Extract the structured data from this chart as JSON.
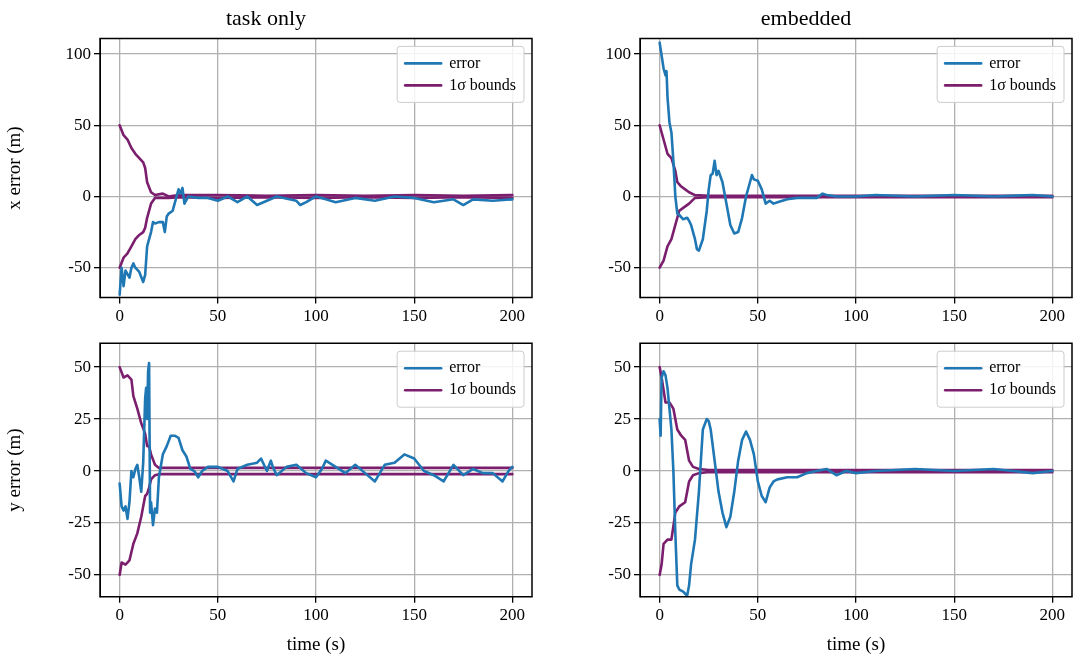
{
  "chart_data": [
    {
      "type": "line",
      "title": "task only",
      "ylabel": "x error (m)",
      "xlim": [
        -10,
        210
      ],
      "ylim": [
        -71,
        111
      ],
      "xticks": [
        0,
        50,
        100,
        150,
        200
      ],
      "yticks": [
        -50,
        0,
        50,
        100
      ],
      "grid": true,
      "legend": "top right",
      "marker": "none",
      "line_style": "solid",
      "series": [
        {
          "name": "error",
          "color": "#1f77b4",
          "x": [
            0,
            1,
            2,
            3,
            5,
            6,
            7,
            8,
            10,
            12,
            13,
            14,
            15,
            16,
            17,
            18,
            20,
            22,
            23,
            24,
            25,
            27,
            28,
            29,
            30,
            31,
            32,
            33,
            35,
            40,
            45,
            50,
            55,
            60,
            65,
            70,
            75,
            80,
            90,
            92,
            95,
            100,
            105,
            110,
            120,
            130,
            140,
            150,
            160,
            170,
            175,
            180,
            190,
            200
          ],
          "values": [
            -69,
            -50,
            -63,
            -52,
            -57,
            -50,
            -47,
            -50,
            -53,
            -60,
            -55,
            -35,
            -30,
            -25,
            -18,
            -19,
            -18,
            -18,
            -25,
            -14,
            -12,
            -10,
            -5,
            0,
            5,
            2,
            6,
            -5,
            0,
            -1,
            -1,
            -3,
            0,
            -4,
            0,
            -6,
            -3,
            0,
            -3,
            -6,
            -4,
            0,
            -2,
            -4,
            -1,
            -3,
            0,
            -1,
            -4,
            -2,
            -6,
            -2,
            -3,
            -2
          ]
        },
        {
          "name": "1σ bounds",
          "color": "#7b1e6e",
          "x": [
            0,
            2,
            4,
            6,
            8,
            10,
            12,
            13,
            14,
            16,
            18,
            22,
            25,
            30,
            50,
            75,
            100,
            125,
            150,
            175,
            200
          ],
          "values": [
            50,
            43,
            40,
            34,
            30,
            27,
            24,
            20,
            10,
            3,
            1,
            2,
            0,
            1,
            1,
            0.5,
            1,
            0.5,
            1,
            0.5,
            1
          ]
        },
        {
          "color": "#7b1e6e",
          "x": [
            0,
            2,
            4,
            6,
            8,
            10,
            12,
            13,
            14,
            16,
            18,
            20,
            25,
            30,
            50,
            75,
            100,
            125,
            150,
            175,
            200
          ],
          "values": [
            -50,
            -43,
            -40,
            -35,
            -30,
            -27,
            -25,
            -22,
            -15,
            -5,
            -1,
            -1,
            -1,
            -0.5,
            -1,
            -0.5,
            -1,
            -0.5,
            -1,
            -0.5,
            -1
          ]
        }
      ]
    },
    {
      "type": "line",
      "title": "embedded",
      "xlim": [
        -10,
        210
      ],
      "ylim": [
        -71,
        111
      ],
      "xticks": [
        0,
        50,
        100,
        150,
        200
      ],
      "yticks": [
        -50,
        0,
        50,
        100
      ],
      "grid": true,
      "legend": "top right",
      "marker": "none",
      "line_style": "solid",
      "series": [
        {
          "name": "error",
          "color": "#1f77b4",
          "x": [
            0,
            2,
            3,
            3.5,
            4,
            5,
            6,
            7,
            8,
            9,
            10,
            12,
            14,
            15,
            16,
            18,
            19,
            20,
            22,
            24,
            25,
            26,
            27,
            28,
            29,
            30,
            32,
            34,
            36,
            38,
            40,
            42,
            44,
            46,
            47,
            48,
            50,
            52,
            54,
            56,
            58,
            60,
            65,
            70,
            80,
            83,
            85,
            90,
            100,
            110,
            130,
            150,
            170,
            190,
            200
          ],
          "values": [
            108,
            90,
            85,
            88,
            70,
            52,
            45,
            25,
            0,
            -12,
            -13,
            -16,
            -15,
            -17,
            -20,
            -30,
            -37,
            -38,
            -30,
            -10,
            5,
            15,
            16,
            25,
            15,
            18,
            10,
            -5,
            -20,
            -26,
            -25,
            -15,
            0,
            10,
            15,
            12,
            11,
            5,
            -5,
            -3,
            -5,
            -4,
            -2,
            -1,
            -1,
            2,
            1,
            0,
            0,
            1,
            0,
            1,
            0,
            1,
            0
          ]
        },
        {
          "name": "1σ bounds",
          "color": "#7b1e6e",
          "x": [
            0,
            2,
            4,
            6,
            8,
            9,
            11,
            13,
            15,
            18,
            25,
            50,
            75,
            100,
            125,
            150,
            175,
            200
          ],
          "values": [
            50,
            40,
            30,
            27,
            18,
            10,
            7,
            5,
            3,
            1,
            0.5,
            0.5,
            0.5,
            0.5,
            0.5,
            0.5,
            0.5,
            0.5
          ]
        },
        {
          "color": "#7b1e6e",
          "x": [
            0,
            2,
            4,
            6,
            8,
            10,
            12,
            15,
            18,
            25,
            50,
            75,
            100,
            125,
            150,
            175,
            200
          ],
          "values": [
            -50,
            -45,
            -35,
            -30,
            -20,
            -10,
            -8,
            -5,
            -1,
            -0.5,
            -0.5,
            -0.5,
            -0.5,
            -0.5,
            -0.5,
            -0.5,
            -0.5
          ]
        }
      ]
    },
    {
      "type": "line",
      "xlabel": "time (s)",
      "ylabel": "y error (m)",
      "xlim": [
        -10,
        210
      ],
      "ylim": [
        -60.5,
        61.5
      ],
      "xticks": [
        0,
        50,
        100,
        150,
        200
      ],
      "yticks": [
        -50,
        -25,
        0,
        25,
        50
      ],
      "grid": true,
      "legend": "top right",
      "marker": "none",
      "line_style": "solid",
      "series": [
        {
          "name": "error",
          "color": "#1f77b4",
          "x": [
            0,
            1,
            2,
            3,
            4,
            5,
            6,
            7,
            8,
            9,
            10,
            11,
            12,
            13,
            13.5,
            14,
            14.5,
            15,
            15.5,
            16,
            17,
            18,
            19,
            20,
            22,
            24,
            26,
            28,
            30,
            32,
            34,
            36,
            38,
            40,
            42,
            45,
            50,
            55,
            58,
            60,
            65,
            70,
            72,
            75,
            77,
            78,
            80,
            85,
            90,
            95,
            100,
            103,
            105,
            110,
            115,
            120,
            125,
            130,
            135,
            140,
            145,
            150,
            155,
            160,
            165,
            170,
            175,
            180,
            185,
            190,
            195,
            198,
            200
          ],
          "values": [
            -6,
            -17,
            -19,
            -17,
            -23,
            -15,
            0,
            -3,
            1,
            3,
            -3,
            -10,
            4,
            35,
            40,
            25,
            48,
            52,
            -20,
            -15,
            -26,
            -18,
            -20,
            -3,
            8,
            12,
            17,
            17,
            16,
            10,
            7,
            1,
            0,
            -3,
            0,
            2,
            2,
            0,
            -5,
            1,
            3,
            4,
            6,
            0,
            5,
            2,
            -2,
            2,
            3,
            -1,
            -3,
            1,
            5,
            2,
            -1,
            3,
            -1,
            -5,
            3,
            4,
            8,
            6,
            0,
            -2,
            -5,
            3,
            -2,
            1,
            -1,
            -1,
            -5,
            0,
            2
          ]
        },
        {
          "name": "1σ bounds",
          "color": "#7b1e6e",
          "x": [
            0,
            2,
            4,
            6,
            7,
            9,
            11,
            13,
            14,
            15,
            16,
            18,
            20,
            50,
            75,
            100,
            125,
            150,
            175,
            200
          ],
          "values": [
            50,
            45,
            46,
            44,
            36,
            30,
            23,
            18,
            12,
            12,
            8,
            3,
            1.5,
            1.5,
            1.5,
            1.5,
            1.5,
            1.5,
            1.5,
            1.5
          ]
        },
        {
          "color": "#7b1e6e",
          "x": [
            0,
            1,
            3,
            5,
            7,
            9,
            11,
            13,
            14,
            15,
            16,
            18,
            20,
            50,
            75,
            100,
            125,
            150,
            175,
            200
          ],
          "values": [
            -50,
            -44,
            -45,
            -43,
            -35,
            -30,
            -22,
            -12,
            -11,
            -8,
            -4,
            -2,
            -1.5,
            -1.5,
            -1.5,
            -1.5,
            -1.5,
            -1.5,
            -1.5,
            -1.5
          ]
        }
      ]
    },
    {
      "type": "line",
      "xlabel": "time (s)",
      "xlim": [
        -10,
        210
      ],
      "ylim": [
        -60.5,
        61.5
      ],
      "xticks": [
        0,
        50,
        100,
        150,
        200
      ],
      "yticks": [
        -50,
        -25,
        0,
        25,
        50
      ],
      "grid": true,
      "legend": "top right",
      "marker": "none",
      "line_style": "solid",
      "series": [
        {
          "name": "error",
          "color": "#1f77b4",
          "x": [
            0,
            0.5,
            1,
            2,
            3,
            4,
            5,
            6,
            7,
            8,
            9,
            10,
            12,
            14,
            15,
            16,
            18,
            20,
            21,
            22,
            24,
            25,
            26,
            28,
            30,
            32,
            34,
            36,
            38,
            40,
            42,
            44,
            46,
            48,
            50,
            52,
            54,
            56,
            58,
            60,
            65,
            70,
            75,
            80,
            85,
            90,
            95,
            100,
            110,
            130,
            150,
            170,
            190,
            200
          ],
          "values": [
            25,
            17,
            45,
            48,
            46,
            40,
            30,
            20,
            0,
            -30,
            -55,
            -57,
            -58,
            -60,
            -55,
            -45,
            -33,
            -10,
            5,
            20,
            25,
            24,
            20,
            5,
            -10,
            -20,
            -27,
            -22,
            -10,
            5,
            15,
            19,
            15,
            8,
            -5,
            -12,
            -15,
            -8,
            -5,
            -4,
            -3,
            -3,
            -1,
            0,
            1,
            -2,
            0,
            -1,
            0,
            1,
            0,
            1,
            -1,
            0
          ]
        },
        {
          "name": "1σ bounds",
          "color": "#7b1e6e",
          "x": [
            0,
            1,
            3,
            5,
            7,
            9,
            11,
            13,
            15,
            17,
            20,
            25,
            50,
            75,
            100,
            125,
            150,
            175,
            200
          ],
          "values": [
            50,
            45,
            33,
            33,
            30,
            20,
            17,
            15,
            5,
            2,
            1,
            0.5,
            0.5,
            0.5,
            0.5,
            0.5,
            0.5,
            0.5,
            0.5
          ]
        },
        {
          "color": "#7b1e6e",
          "x": [
            0,
            1,
            2,
            4,
            6,
            8,
            10,
            13,
            15,
            17,
            20,
            25,
            50,
            75,
            100,
            125,
            150,
            175,
            200
          ],
          "values": [
            -50,
            -45,
            -35,
            -33,
            -33,
            -20,
            -17,
            -15,
            -5,
            -2,
            -1,
            -0.5,
            -0.5,
            -0.5,
            -0.5,
            -0.5,
            -0.5,
            -0.5,
            -0.5
          ]
        }
      ]
    }
  ]
}
